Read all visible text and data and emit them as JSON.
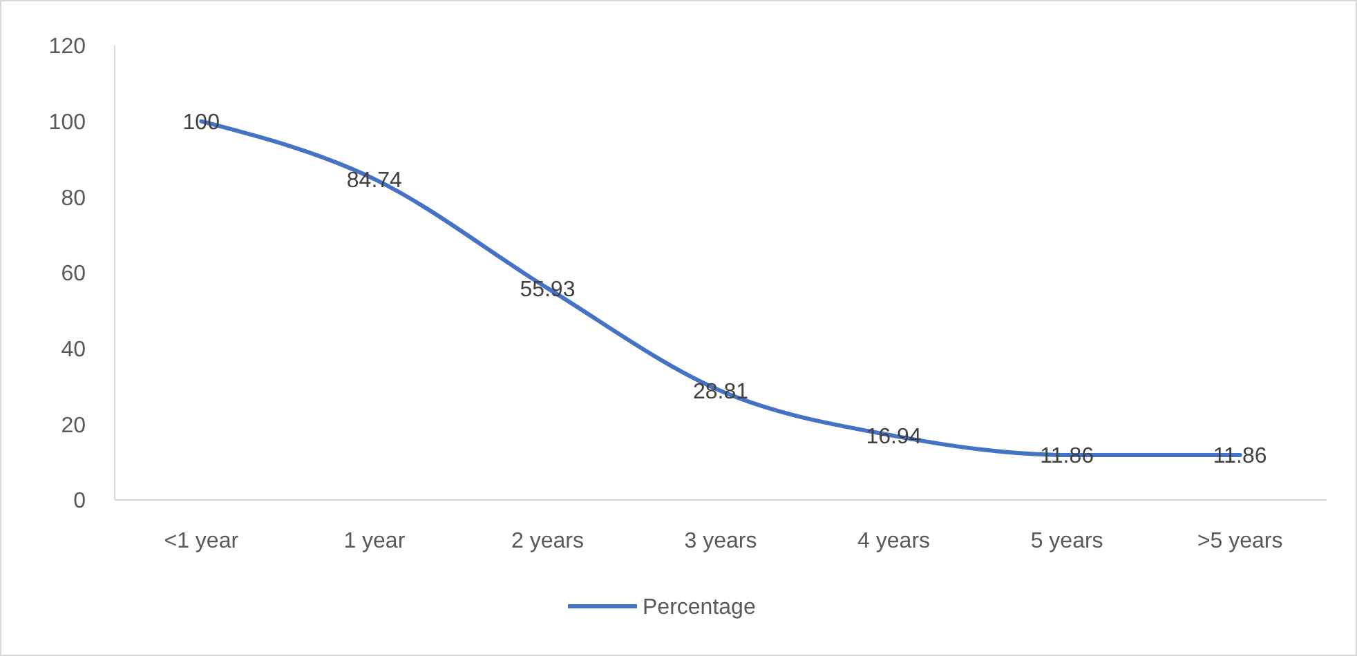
{
  "chart_data": {
    "type": "line",
    "categories": [
      "<1 year",
      "1 year",
      "2 years",
      "3 years",
      "4 years",
      "5 years",
      ">5 years"
    ],
    "series": [
      {
        "name": "Percentage",
        "color": "#4472c4",
        "values": [
          100,
          84.74,
          55.93,
          28.81,
          16.94,
          11.86,
          11.86
        ]
      }
    ],
    "ylim": [
      0,
      120
    ],
    "yticks": [
      0,
      20,
      40,
      60,
      80,
      100,
      120
    ],
    "grid": false,
    "legend": "bottom",
    "data_labels": true,
    "marker": "none",
    "line_style": "solid"
  }
}
